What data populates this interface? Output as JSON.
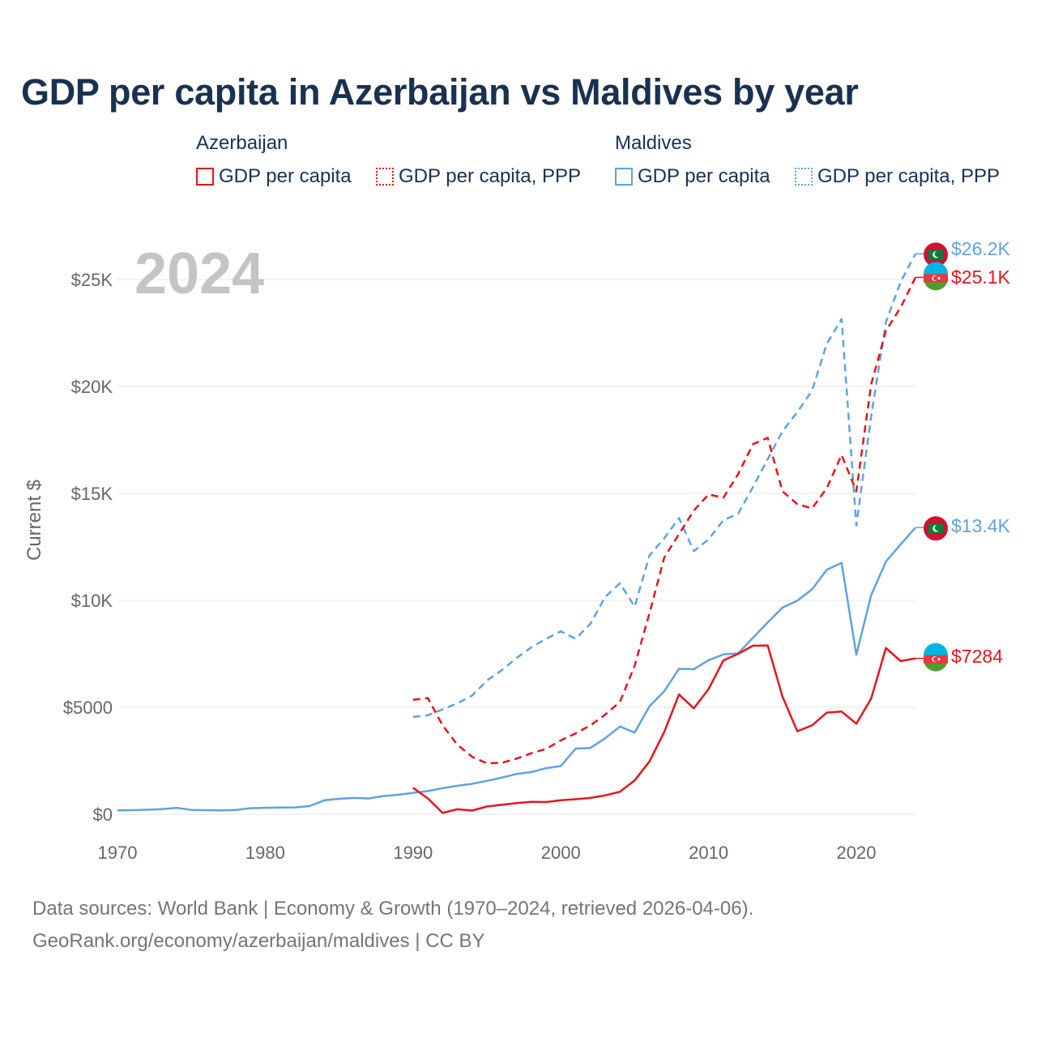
{
  "title": "GDP per capita in Azerbaijan vs Maldives by year",
  "legend": {
    "groups": [
      {
        "country": "Azerbaijan",
        "color": "#e8141b",
        "items": [
          "GDP per capita",
          "GDP per capita, PPP"
        ]
      },
      {
        "country": "Maldives",
        "color": "#5fa2e0",
        "items": [
          "GDP per capita",
          "GDP per capita, PPP"
        ]
      }
    ]
  },
  "year_overlay": "2024",
  "end_labels": {
    "mv_ppp": "$26.2K",
    "az_ppp": "$25.1K",
    "mv_gdp": "$13.4K",
    "az_gdp": "$7284"
  },
  "footer": {
    "line1": "Data sources: World Bank | Economy & Growth (1970–2024, retrieved 2026-04-06).",
    "line2": "GeoRank.org/economy/azerbaijan/maldives | CC BY"
  },
  "chart_data": {
    "type": "line",
    "title": "GDP per capita in Azerbaijan vs Maldives by year",
    "xlabel": "",
    "ylabel": "Current $",
    "xlim": [
      1970,
      2024
    ],
    "ylim": [
      0,
      25000
    ],
    "grid": true,
    "x_ticks": [
      {
        "value": 1970,
        "label": "1970"
      },
      {
        "value": 1980,
        "label": "1980"
      },
      {
        "value": 1990,
        "label": "1990"
      },
      {
        "value": 2000,
        "label": "2000"
      },
      {
        "value": 2010,
        "label": "2010"
      },
      {
        "value": 2020,
        "label": "2020"
      }
    ],
    "y_ticks": [
      {
        "value": 0,
        "label": "$0"
      },
      {
        "value": 5000,
        "label": "$5000"
      },
      {
        "value": 10000,
        "label": "$10K"
      },
      {
        "value": 15000,
        "label": "$15K"
      },
      {
        "value": 20000,
        "label": "$20K"
      },
      {
        "value": 25000,
        "label": "$25K"
      }
    ],
    "series": [
      {
        "id": "mv_gdp",
        "country": "Maldives",
        "name": "GDP per capita",
        "color": "#5fa2e0",
        "dashed": false,
        "x": [
          1970,
          1971,
          1972,
          1973,
          1974,
          1975,
          1976,
          1977,
          1978,
          1979,
          1980,
          1981,
          1982,
          1983,
          1984,
          1985,
          1986,
          1987,
          1988,
          1989,
          1990,
          1991,
          1992,
          1993,
          1994,
          1995,
          1996,
          1997,
          1998,
          1999,
          2000,
          2001,
          2002,
          2003,
          2004,
          2005,
          2006,
          2007,
          2008,
          2009,
          2010,
          2011,
          2012,
          2013,
          2014,
          2015,
          2016,
          2017,
          2018,
          2019,
          2020,
          2021,
          2022,
          2023,
          2024
        ],
        "values": [
          180,
          190,
          210,
          240,
          300,
          200,
          190,
          180,
          200,
          280,
          300,
          310,
          320,
          380,
          650,
          720,
          760,
          740,
          850,
          910,
          1000,
          1080,
          1220,
          1330,
          1420,
          1560,
          1710,
          1880,
          1970,
          2150,
          2250,
          3070,
          3100,
          3550,
          4100,
          3820,
          5050,
          5750,
          6800,
          6780,
          7200,
          7470,
          7520,
          8250,
          8970,
          9660,
          9980,
          10510,
          11430,
          11750,
          7460,
          10240,
          11810,
          12620,
          13400
        ]
      },
      {
        "id": "mv_ppp",
        "country": "Maldives",
        "name": "GDP per capita, PPP",
        "color": "#5fa2e0",
        "dashed": true,
        "x": [
          1990,
          1991,
          1992,
          1993,
          1994,
          1995,
          1996,
          1997,
          1998,
          1999,
          2000,
          2001,
          2002,
          2003,
          2004,
          2005,
          2006,
          2007,
          2008,
          2009,
          2010,
          2011,
          2012,
          2013,
          2014,
          2015,
          2016,
          2017,
          2018,
          2019,
          2020,
          2021,
          2022,
          2023,
          2024
        ],
        "values": [
          4550,
          4630,
          4900,
          5180,
          5550,
          6250,
          6730,
          7300,
          7800,
          8200,
          8550,
          8200,
          8900,
          10150,
          10800,
          9700,
          12100,
          12900,
          13850,
          12300,
          12850,
          13750,
          14050,
          15300,
          16600,
          17900,
          18800,
          19800,
          22000,
          23150,
          13500,
          18600,
          23000,
          24900,
          26200
        ]
      },
      {
        "id": "az_gdp",
        "country": "Azerbaijan",
        "name": "GDP per capita",
        "color": "#e8141b",
        "dashed": false,
        "x": [
          1990,
          1991,
          1992,
          1993,
          1994,
          1995,
          1996,
          1997,
          1998,
          1999,
          2000,
          2001,
          2002,
          2003,
          2004,
          2005,
          2006,
          2007,
          2008,
          2009,
          2010,
          2011,
          2012,
          2013,
          2014,
          2015,
          2016,
          2017,
          2018,
          2019,
          2020,
          2021,
          2022,
          2023,
          2024
        ],
        "values": [
          1240,
          740,
          60,
          230,
          170,
          360,
          440,
          520,
          580,
          570,
          650,
          700,
          760,
          880,
          1050,
          1580,
          2470,
          3850,
          5600,
          4950,
          5850,
          7190,
          7500,
          7880,
          7890,
          5500,
          3880,
          4150,
          4750,
          4800,
          4230,
          5410,
          7770,
          7160,
          7284
        ]
      },
      {
        "id": "az_ppp",
        "country": "Azerbaijan",
        "name": "GDP per capita, PPP",
        "color": "#e8141b",
        "dashed": true,
        "x": [
          1990,
          1991,
          1992,
          1993,
          1994,
          1995,
          1996,
          1997,
          1998,
          1999,
          2000,
          2001,
          2002,
          2003,
          2004,
          2005,
          2006,
          2007,
          2008,
          2009,
          2010,
          2011,
          2012,
          2013,
          2014,
          2015,
          2016,
          2017,
          2018,
          2019,
          2020,
          2021,
          2022,
          2023,
          2024
        ],
        "values": [
          5350,
          5430,
          4150,
          3250,
          2680,
          2380,
          2400,
          2600,
          2850,
          3050,
          3450,
          3780,
          4150,
          4650,
          5250,
          6950,
          9400,
          12000,
          13100,
          14200,
          14950,
          14800,
          15900,
          17300,
          17600,
          15100,
          14500,
          14300,
          15250,
          16800,
          15100,
          20100,
          22600,
          23700,
          25100
        ]
      }
    ]
  }
}
